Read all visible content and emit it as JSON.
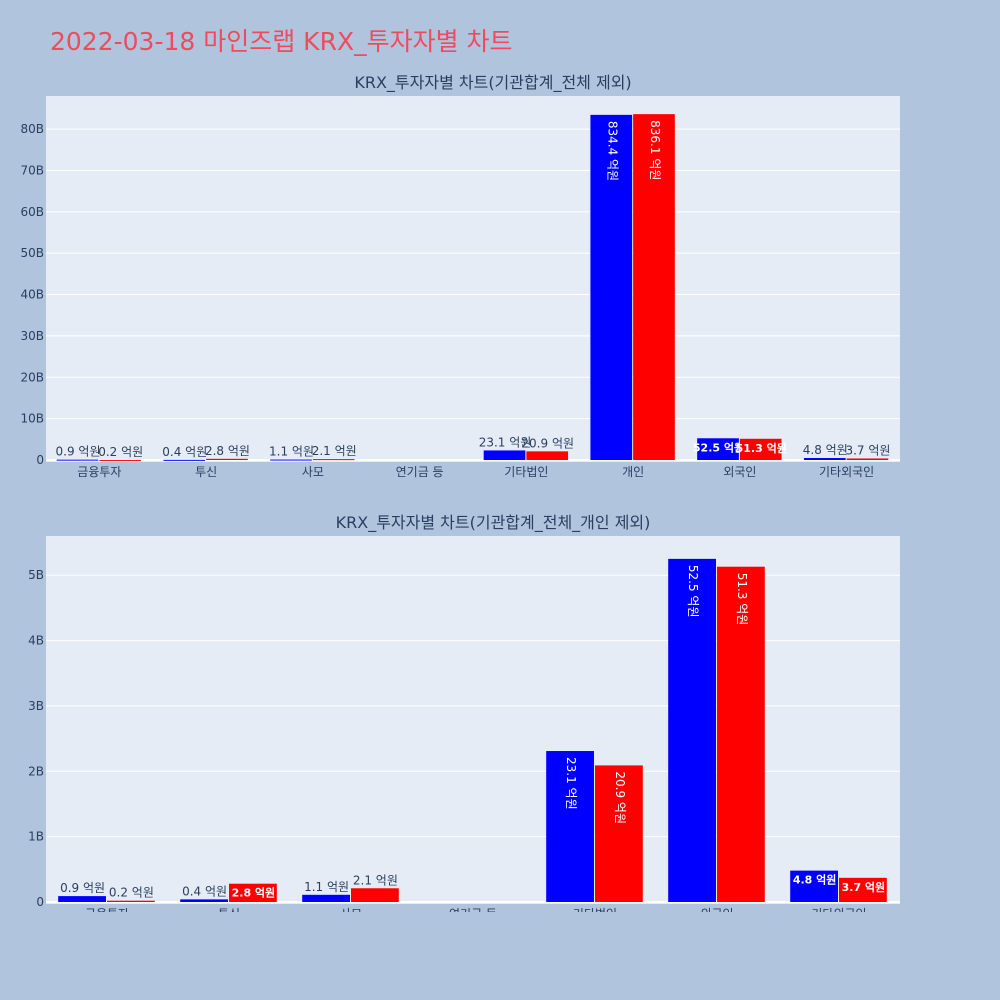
{
  "page_title": "2022-03-18 마인즈랩 KRX_투자자별 차트",
  "colors": {
    "background": "#b0c4de",
    "plot_bg": "#e5ecf6",
    "title": "#ef4b5c",
    "buy": "#0000ff",
    "sell": "#ff0000"
  },
  "chart_data": [
    {
      "type": "bar",
      "title": "KRX_투자자별 차트(기관합계_전체 제외)",
      "categories": [
        "금융투자",
        "투신",
        "사모",
        "연기금 등",
        "기타법인",
        "개인",
        "외국인",
        "기타외국인"
      ],
      "ylim": [
        0,
        88000000000
      ],
      "yticks": [
        0,
        10000000000,
        20000000000,
        30000000000,
        40000000000,
        50000000000,
        60000000000,
        70000000000,
        80000000000
      ],
      "ytick_labels": [
        "0",
        "10B",
        "20B",
        "30B",
        "40B",
        "50B",
        "60B",
        "70B",
        "80B"
      ],
      "grid": true,
      "series": [
        {
          "color": "#0000ff",
          "values": [
            90000000,
            40000000,
            110000000,
            0,
            2310000000,
            83440000000,
            5250000000,
            480000000
          ],
          "labels": [
            "0.9 억원",
            "0.4 억원",
            "1.1 억원",
            "",
            "23.1 억원",
            "834.4 억원",
            "52.5 억원",
            "4.8 억원"
          ]
        },
        {
          "color": "#ff0000",
          "values": [
            20000000,
            280000000,
            210000000,
            0,
            2090000000,
            83610000000,
            5130000000,
            370000000
          ],
          "labels": [
            "0.2 억원",
            "2.8 억원",
            "2.1 억원",
            "",
            "20.9 억원",
            "836.1 억원",
            "51.3 억원",
            "3.7 억원"
          ]
        }
      ]
    },
    {
      "type": "bar",
      "title": "KRX_투자자별 차트(기관합계_전체_개인 제외)",
      "categories": [
        "금융투자",
        "투신",
        "사모",
        "연기금 등",
        "기타법인",
        "외국인",
        "기타외국인"
      ],
      "ylim": [
        0,
        5600000000
      ],
      "yticks": [
        0,
        1000000000,
        2000000000,
        3000000000,
        4000000000,
        5000000000
      ],
      "ytick_labels": [
        "0",
        "1B",
        "2B",
        "3B",
        "4B",
        "5B"
      ],
      "grid": true,
      "series": [
        {
          "color": "#0000ff",
          "values": [
            90000000,
            40000000,
            110000000,
            0,
            2310000000,
            5250000000,
            480000000
          ],
          "labels": [
            "0.9 억원",
            "0.4 억원",
            "1.1 억원",
            "",
            "23.1 억원",
            "52.5 억원",
            "4.8 억원"
          ]
        },
        {
          "color": "#ff0000",
          "values": [
            20000000,
            280000000,
            210000000,
            0,
            2090000000,
            5130000000,
            370000000
          ],
          "labels": [
            "0.2 억원",
            "2.8 억원",
            "2.1 억원",
            "",
            "20.9 억원",
            "51.3 억원",
            "3.7 억원"
          ]
        }
      ]
    }
  ]
}
